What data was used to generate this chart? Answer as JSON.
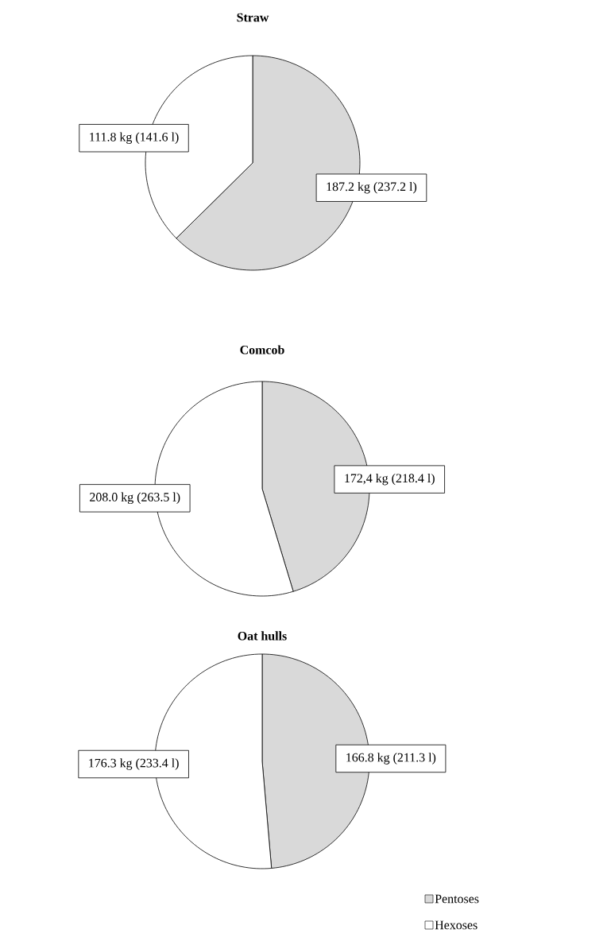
{
  "chart_data": [
    {
      "type": "pie",
      "title": "Straw",
      "values": [
        187.2,
        111.8
      ],
      "colors": [
        "#d9d9d9",
        "#ffffff"
      ],
      "value_labels": [
        "187.2 kg (237.2 l)",
        "111.8 kg (141.6 l)"
      ],
      "legend": false
    },
    {
      "type": "pie",
      "title": "Comcob",
      "values": [
        172.4,
        208.0
      ],
      "colors": [
        "#d9d9d9",
        "#ffffff"
      ],
      "value_labels": [
        "172,4 kg (218.4 l)",
        "208.0 kg (263.5 l)"
      ],
      "legend": false
    },
    {
      "type": "pie",
      "title": "Oat hulls",
      "categories": [
        "Pentoses",
        "Hexoses"
      ],
      "values": [
        166.8,
        176.3
      ],
      "colors": [
        "#d9d9d9",
        "#ffffff"
      ],
      "value_labels": [
        "166.8 kg (211.3 l)",
        "176.3 kg (233.4 l)"
      ],
      "legend": "bottom right"
    }
  ]
}
